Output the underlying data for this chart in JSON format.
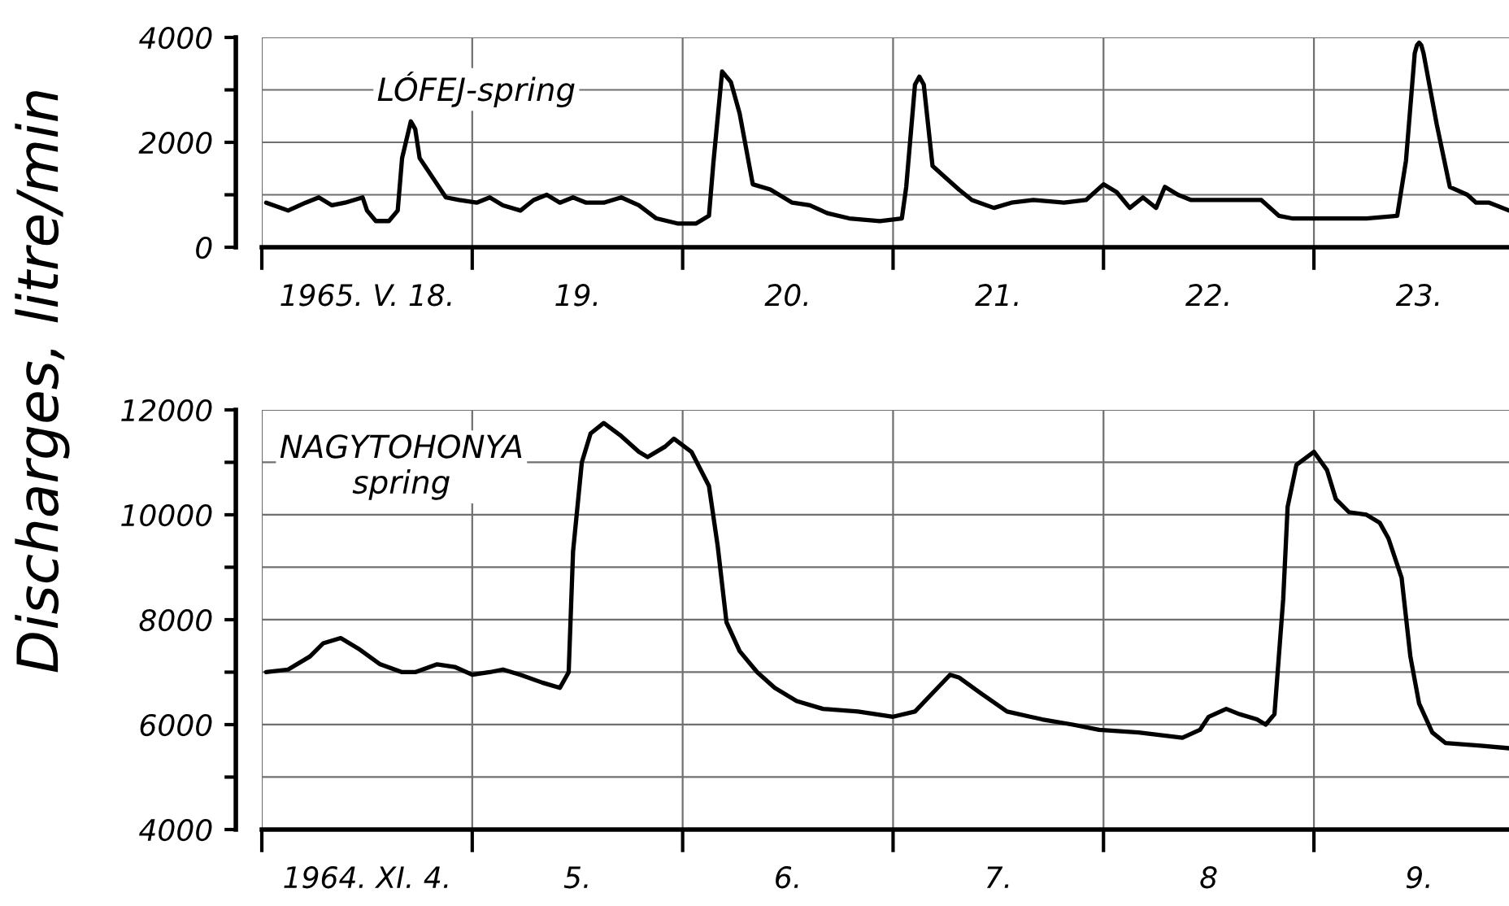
{
  "chart_data": [
    {
      "type": "line",
      "title": "LÓFEJ-spring",
      "ylabel": "Discharges, litre/min",
      "x": [
        "1965-05-18T00:30",
        "1965-05-18T03:00",
        "1965-05-18T05:00",
        "1965-05-18T06:30",
        "1965-05-18T08:00",
        "1965-05-18T09:30",
        "1965-05-18T11:30",
        "1965-05-18T12:00",
        "1965-05-18T13:00",
        "1965-05-18T14:30",
        "1965-05-18T15:30",
        "1965-05-18T16:00",
        "1965-05-18T17:00",
        "1965-05-18T17:30",
        "1965-05-18T18:00",
        "1965-05-18T19:00",
        "1965-05-18T20:00",
        "1965-05-18T21:00",
        "1965-05-18T22:30",
        "1965-05-19T00:30",
        "1965-05-19T02:00",
        "1965-05-19T03:30",
        "1965-05-19T05:30",
        "1965-05-19T07:00",
        "1965-05-19T08:30",
        "1965-05-19T10:00",
        "1965-05-19T11:30",
        "1965-05-19T13:00",
        "1965-05-19T15:00",
        "1965-05-19T17:00",
        "1965-05-19T19:00",
        "1965-05-19T21:00",
        "1965-05-19T23:30",
        "1965-05-20T01:30",
        "1965-05-20T03:00",
        "1965-05-20T03:30",
        "1965-05-20T04:30",
        "1965-05-20T05:30",
        "1965-05-20T06:30",
        "1965-05-20T08:00",
        "1965-05-20T10:00",
        "1965-05-20T12:30",
        "1965-05-20T14:30",
        "1965-05-20T16:30",
        "1965-05-20T19:00",
        "1965-05-20T22:30",
        "1965-05-21T01:00",
        "1965-05-21T01:30",
        "1965-05-21T02:30",
        "1965-05-21T03:00",
        "1965-05-21T03:30",
        "1965-05-21T04:30",
        "1965-05-21T05:30",
        "1965-05-21T07:30",
        "1965-05-21T09:00",
        "1965-05-21T11:30",
        "1965-05-21T13:30",
        "1965-05-21T16:00",
        "1965-05-21T19:30",
        "1965-05-21T22:00",
        "1965-05-22T00:00",
        "1965-05-22T01:30",
        "1965-05-22T03:00",
        "1965-05-22T04:30",
        "1965-05-22T06:00",
        "1965-05-22T07:00",
        "1965-05-22T08:30",
        "1965-05-22T10:00",
        "1965-05-22T14:30",
        "1965-05-22T18:00",
        "1965-05-22T20:00",
        "1965-05-22T21:30",
        "1965-05-23T00:30",
        "1965-05-23T06:00",
        "1965-05-23T09:30",
        "1965-05-23T10:30",
        "1965-05-23T11:30",
        "1965-05-23T11:45",
        "1965-05-23T12:00",
        "1965-05-23T12:15",
        "1965-05-23T12:30",
        "1965-05-23T14:00",
        "1965-05-23T15:30",
        "1965-05-23T17:30",
        "1965-05-23T18:30",
        "1965-05-23T20:00",
        "1965-05-23T22:15"
      ],
      "series": [
        {
          "color": "#000000",
          "values": [
            850,
            700,
            850,
            950,
            800,
            850,
            950,
            700,
            500,
            500,
            700,
            1700,
            2400,
            2250,
            1700,
            1450,
            1200,
            950,
            900,
            850,
            950,
            800,
            700,
            900,
            1000,
            850,
            950,
            850,
            850,
            950,
            800,
            550,
            450,
            450,
            600,
            1600,
            3350,
            3150,
            2550,
            1200,
            1100,
            850,
            800,
            650,
            550,
            500,
            550,
            1150,
            3100,
            3250,
            3100,
            1550,
            1400,
            1100,
            900,
            750,
            850,
            900,
            850,
            900,
            1200,
            1050,
            750,
            950,
            750,
            1150,
            1000,
            900,
            900,
            900,
            600,
            550,
            550,
            550,
            600,
            1650,
            3700,
            3850,
            3900,
            3850,
            3700,
            2350,
            1150,
            1000,
            850,
            850,
            700
          ]
        }
      ],
      "xlim": [
        "1965-05-18T00:00",
        "1965-05-23T22:15"
      ],
      "xticks": [
        {
          "value": "1965-05-18T00:00",
          "label": null
        },
        {
          "value": "1965-05-18T12:00",
          "label": "1965. V. 18."
        },
        {
          "value": "1965-05-19T00:00",
          "label": null
        },
        {
          "value": "1965-05-19T12:00",
          "label": "19."
        },
        {
          "value": "1965-05-20T00:00",
          "label": null
        },
        {
          "value": "1965-05-20T12:00",
          "label": "20."
        },
        {
          "value": "1965-05-21T00:00",
          "label": null
        },
        {
          "value": "1965-05-21T12:00",
          "label": "21."
        },
        {
          "value": "1965-05-22T00:00",
          "label": null
        },
        {
          "value": "1965-05-22T12:00",
          "label": "22."
        },
        {
          "value": "1965-05-23T00:00",
          "label": null
        },
        {
          "value": "1965-05-23T12:00",
          "label": "23."
        }
      ],
      "ylim": [
        0,
        4000
      ],
      "yticks": [
        0,
        {
          "value": 1000,
          "label": null
        },
        2000,
        {
          "value": 3000,
          "label": null
        },
        4000
      ],
      "grid": true
    },
    {
      "type": "line",
      "title": "NAGYTOHONYA\nspring",
      "x": [
        "1964-11-04T00:30",
        "1964-11-04T03:00",
        "1964-11-04T05:30",
        "1964-11-04T07:00",
        "1964-11-04T09:00",
        "1964-11-04T11:00",
        "1964-11-04T13:30",
        "1964-11-04T16:00",
        "1964-11-04T17:30",
        "1964-11-04T20:00",
        "1964-11-04T22:00",
        "1964-11-05T00:00",
        "1964-11-05T02:00",
        "1964-11-05T03:30",
        "1964-11-05T05:30",
        "1964-11-05T08:00",
        "1964-11-05T10:00",
        "1964-11-05T11:00",
        "1964-11-05T11:30",
        "1964-11-05T12:30",
        "1964-11-05T13:30",
        "1964-11-05T15:00",
        "1964-11-05T17:00",
        "1964-11-05T19:00",
        "1964-11-05T20:00",
        "1964-11-05T22:00",
        "1964-11-05T23:00",
        "1964-11-06T01:00",
        "1964-11-06T03:00",
        "1964-11-06T04:00",
        "1964-11-06T05:00",
        "1964-11-06T06:30",
        "1964-11-06T08:30",
        "1964-11-06T10:30",
        "1964-11-06T13:00",
        "1964-11-06T16:00",
        "1964-11-06T20:00",
        "1964-11-07T00:00",
        "1964-11-07T02:30",
        "1964-11-07T04:30",
        "1964-11-07T06:30",
        "1964-11-07T07:30",
        "1964-11-07T10:00",
        "1964-11-07T13:00",
        "1964-11-07T17:00",
        "1964-11-07T20:30",
        "1964-11-07T23:30",
        "1964-11-08T04:00",
        "1964-11-08T09:00",
        "1964-11-08T11:00",
        "1964-11-08T12:00",
        "1964-11-08T14:00",
        "1964-11-08T15:30",
        "1964-11-08T17:30",
        "1964-11-08T18:30",
        "1964-11-08T19:30",
        "1964-11-08T20:30",
        "1964-11-08T21:00",
        "1964-11-08T22:00",
        "1964-11-09T00:00",
        "1964-11-09T01:30",
        "1964-11-09T02:30",
        "1964-11-09T04:00",
        "1964-11-09T06:00",
        "1964-11-09T07:30",
        "1964-11-09T08:30",
        "1964-11-09T10:00",
        "1964-11-09T11:00",
        "1964-11-09T12:00",
        "1964-11-09T13:30",
        "1964-11-09T15:00",
        "1964-11-09T19:00",
        "1964-11-09T22:15"
      ],
      "series": [
        {
          "color": "#000000",
          "values": [
            7000,
            7050,
            7300,
            7550,
            7650,
            7450,
            7150,
            7000,
            7000,
            7150,
            7100,
            6950,
            7000,
            7050,
            6950,
            6800,
            6700,
            7000,
            9300,
            11000,
            11550,
            11750,
            11500,
            11200,
            11100,
            11300,
            11450,
            11200,
            10550,
            9400,
            7950,
            7400,
            7000,
            6700,
            6450,
            6300,
            6250,
            6150,
            6250,
            6600,
            6950,
            6900,
            6600,
            6250,
            6100,
            6000,
            5900,
            5850,
            5750,
            5900,
            6150,
            6300,
            6200,
            6100,
            6000,
            6200,
            8400,
            10150,
            10950,
            11200,
            10850,
            10300,
            10050,
            10000,
            9850,
            9550,
            8800,
            7300,
            6400,
            5850,
            5650,
            5600,
            5550
          ]
        }
      ],
      "xlim": [
        "1964-11-04T00:00",
        "1964-11-09T22:15"
      ],
      "xticks": [
        {
          "value": "1964-11-04T00:00",
          "label": null
        },
        {
          "value": "1964-11-04T12:00",
          "label": "1964. XI. 4."
        },
        {
          "value": "1964-11-05T00:00",
          "label": null
        },
        {
          "value": "1964-11-05T12:00",
          "label": "5."
        },
        {
          "value": "1964-11-06T00:00",
          "label": null
        },
        {
          "value": "1964-11-06T12:00",
          "label": "6."
        },
        {
          "value": "1964-11-07T00:00",
          "label": null
        },
        {
          "value": "1964-11-07T12:00",
          "label": "7."
        },
        {
          "value": "1964-11-08T00:00",
          "label": null
        },
        {
          "value": "1964-11-08T12:00",
          "label": "8"
        },
        {
          "value": "1964-11-09T00:00",
          "label": null
        },
        {
          "value": "1964-11-09T12:00",
          "label": "9."
        }
      ],
      "ylim": [
        4000,
        12000
      ],
      "yticks": [
        4000,
        {
          "value": 5000,
          "label": null
        },
        6000,
        {
          "value": 7000,
          "label": null
        },
        8000,
        {
          "value": 9000,
          "label": null
        },
        10000,
        {
          "value": 11000,
          "label": null
        },
        12000
      ],
      "grid": true
    }
  ]
}
